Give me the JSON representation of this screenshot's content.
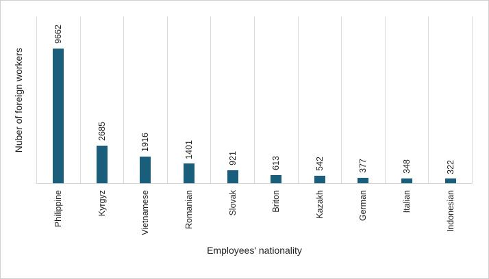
{
  "chart_data": {
    "type": "bar",
    "title": "",
    "categories": [
      "Philippine",
      "Kyrgyz",
      "Vietnamese",
      "Romanian",
      "Slovak",
      "Briton",
      "Kazakh",
      "German",
      "Italian",
      "Indonesian"
    ],
    "values": [
      9662,
      2685,
      1916,
      1401,
      921,
      613,
      542,
      377,
      348,
      322
    ],
    "xlabel": "Employees' nationality",
    "ylabel": "Nuber of foreign workers",
    "ylim": [
      0,
      12000
    ],
    "grid": "vertical category-separator gridlines only, no horizontal gridlines, no y-axis tick labels",
    "legend": "none",
    "data_labels": "value shown above each bar, rotated 90 degrees",
    "label_rotation_degrees": 90,
    "colors": {
      "bar": "#1b5e7c",
      "gridline": "#dcdcdc",
      "axis_line": "#d4d4d4",
      "text": "#1f1f1f",
      "background": "#ffffff",
      "figure_border": "#d0d0d0"
    }
  }
}
